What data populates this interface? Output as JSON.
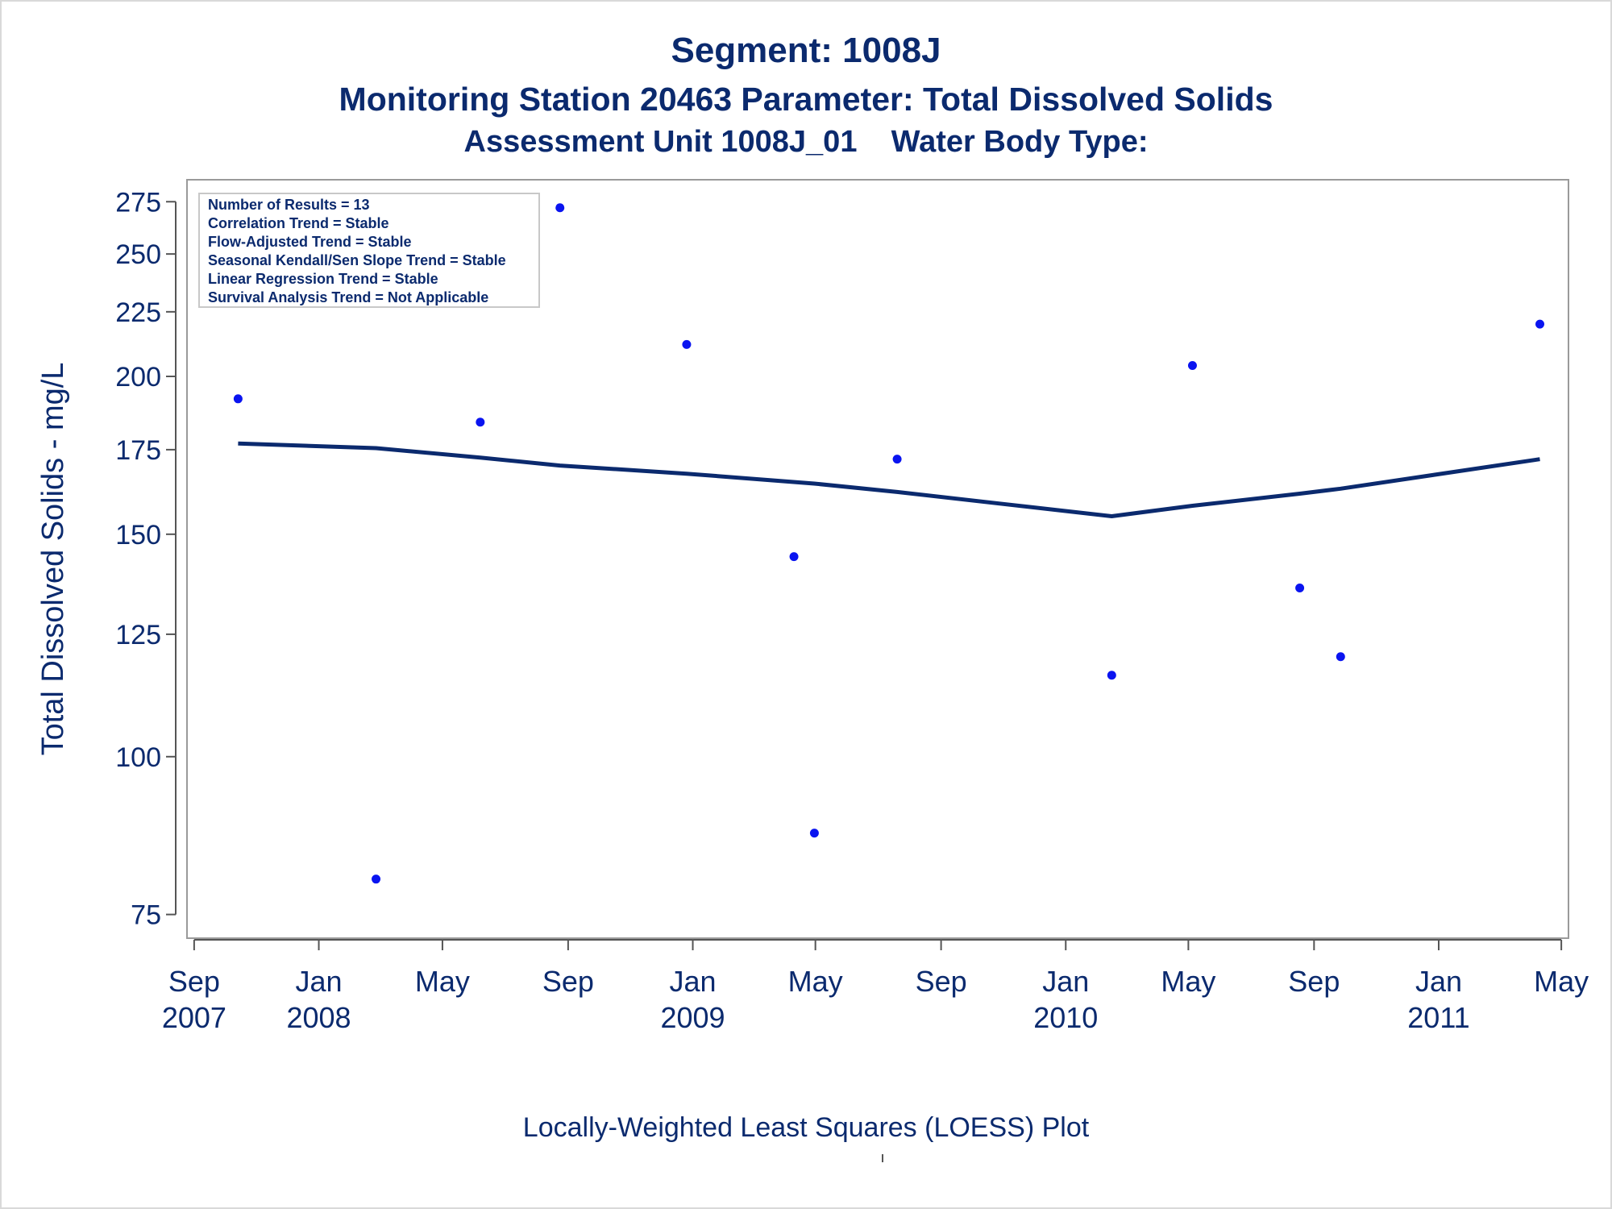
{
  "titles": {
    "line1": "Segment: 1008J",
    "line2": "Monitoring Station 20463 Parameter: Total Dissolved Solids",
    "line3": "Assessment Unit 1008J_01    Water Body Type:"
  },
  "footnote": "Locally-Weighted Least Squares (LOESS) Plot",
  "stats_box": [
    "Number of Results = 13",
    "Correlation Trend = Stable",
    "Flow-Adjusted Trend = Stable",
    "Seasonal Kendall/Sen Slope Trend = Stable",
    "Linear Regression Trend = Stable",
    "Survival Analysis Trend = Not Applicable"
  ],
  "colors": {
    "text": "#0b2a6e",
    "points": "#0a14f0",
    "loess_line": "#0b2a6e",
    "axis": "#555555"
  },
  "chart_data": {
    "type": "scatter",
    "ylabel": "Total Dissolved Solids - mg/L",
    "y_scale": "log",
    "ylim": [
      73,
      280
    ],
    "y_ticks": [
      75,
      100,
      125,
      150,
      175,
      200,
      225,
      250,
      275
    ],
    "xlim": [
      "2007-08-25",
      "2011-05-08"
    ],
    "x_ticks": [
      {
        "date": "2007-09-01",
        "label1": "Sep",
        "label2": "2007"
      },
      {
        "date": "2008-01-01",
        "label1": "Jan",
        "label2": "2008"
      },
      {
        "date": "2008-05-01",
        "label1": "May",
        "label2": ""
      },
      {
        "date": "2008-09-01",
        "label1": "Sep",
        "label2": ""
      },
      {
        "date": "2009-01-01",
        "label1": "Jan",
        "label2": "2009"
      },
      {
        "date": "2009-05-01",
        "label1": "May",
        "label2": ""
      },
      {
        "date": "2009-09-01",
        "label1": "Sep",
        "label2": ""
      },
      {
        "date": "2010-01-01",
        "label1": "Jan",
        "label2": "2010"
      },
      {
        "date": "2010-05-01",
        "label1": "May",
        "label2": ""
      },
      {
        "date": "2010-09-01",
        "label1": "Sep",
        "label2": ""
      },
      {
        "date": "2011-01-01",
        "label1": "Jan",
        "label2": "2011"
      },
      {
        "date": "2011-05-01",
        "label1": "May",
        "label2": ""
      }
    ],
    "points": [
      {
        "x": "2007-10-14",
        "y": 192
      },
      {
        "x": "2008-02-26",
        "y": 80
      },
      {
        "x": "2008-06-07",
        "y": 184
      },
      {
        "x": "2008-08-24",
        "y": 272
      },
      {
        "x": "2008-12-26",
        "y": 212
      },
      {
        "x": "2009-04-10",
        "y": 144
      },
      {
        "x": "2009-04-30",
        "y": 87
      },
      {
        "x": "2009-07-20",
        "y": 172
      },
      {
        "x": "2010-02-15",
        "y": 116
      },
      {
        "x": "2010-05-05",
        "y": 204
      },
      {
        "x": "2010-08-18",
        "y": 136
      },
      {
        "x": "2010-09-27",
        "y": 120
      },
      {
        "x": "2011-04-10",
        "y": 220
      }
    ],
    "loess": [
      {
        "x": "2007-10-14",
        "y": 177
      },
      {
        "x": "2008-02-26",
        "y": 175.5
      },
      {
        "x": "2008-06-07",
        "y": 172.5
      },
      {
        "x": "2008-08-24",
        "y": 170
      },
      {
        "x": "2008-12-26",
        "y": 167.5
      },
      {
        "x": "2009-04-30",
        "y": 164.5
      },
      {
        "x": "2009-07-20",
        "y": 162
      },
      {
        "x": "2009-11-01",
        "y": 158.5
      },
      {
        "x": "2010-02-15",
        "y": 155
      },
      {
        "x": "2010-05-05",
        "y": 158
      },
      {
        "x": "2010-08-18",
        "y": 161.5
      },
      {
        "x": "2010-09-27",
        "y": 163
      },
      {
        "x": "2011-04-10",
        "y": 172
      }
    ]
  }
}
